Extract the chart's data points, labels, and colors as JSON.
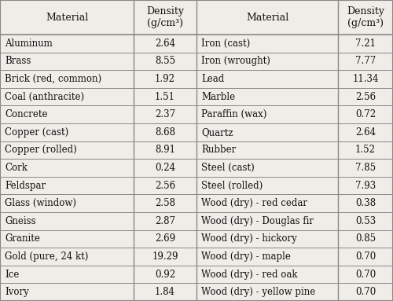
{
  "left_materials": [
    "Aluminum",
    "Brass",
    "Brick (red, common)",
    "Coal (anthracite)",
    "Concrete",
    "Copper (cast)",
    "Copper (rolled)",
    "Cork",
    "Feldspar",
    "Glass (window)",
    "Gneiss",
    "Granite",
    "Gold (pure, 24 kt)",
    "Ice",
    "Ivory"
  ],
  "left_densities": [
    "2.64",
    "8.55",
    "1.92",
    "1.51",
    "2.37",
    "8.68",
    "8.91",
    "0.24",
    "2.56",
    "2.58",
    "2.87",
    "2.69",
    "19.29",
    "0.92",
    "1.84"
  ],
  "right_materials": [
    "Iron (cast)",
    "Iron (wrought)",
    "Lead",
    "Marble",
    "Paraffin (wax)",
    "Quartz",
    "Rubber",
    "Steel (cast)",
    "Steel (rolled)",
    "Wood (dry) - red cedar",
    "Wood (dry) - Douglas fir",
    "Wood (dry) - hickory",
    "Wood (dry) - maple",
    "Wood (dry) - red oak",
    "Wood (dry) - yellow pine"
  ],
  "right_densities": [
    "7.21",
    "7.77",
    "11.34",
    "2.56",
    "0.72",
    "2.64",
    "1.52",
    "7.85",
    "7.93",
    "0.38",
    "0.53",
    "0.85",
    "0.70",
    "0.70",
    "0.70"
  ],
  "col_headers": [
    "Material",
    "Density\n(g/cm³)",
    "Material",
    "Density\n(g/cm³)"
  ],
  "bg_color": "#f0ede8",
  "line_color": "#888888",
  "text_color": "#111111",
  "font_size": 8.5,
  "header_font_size": 9.0
}
